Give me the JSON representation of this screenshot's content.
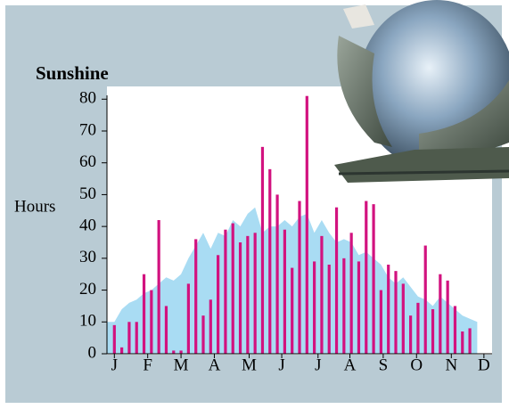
{
  "chart_data": {
    "type": "bar",
    "title": "Sunshine",
    "y_label": "Hours",
    "xlim": [
      -1,
      51
    ],
    "ylim": [
      0,
      84
    ],
    "xticks": [
      {
        "value": 0,
        "label": "J"
      },
      {
        "value": 4.5,
        "label": "F"
      },
      {
        "value": 9,
        "label": "M"
      },
      {
        "value": 13.5,
        "label": "A"
      },
      {
        "value": 18.2,
        "label": "M"
      },
      {
        "value": 22.6,
        "label": "J"
      },
      {
        "value": 27.5,
        "label": "J"
      },
      {
        "value": 31.8,
        "label": "A"
      },
      {
        "value": 36.3,
        "label": "S"
      },
      {
        "value": 40.8,
        "label": "O"
      },
      {
        "value": 45.5,
        "label": "N"
      },
      {
        "value": 49.9,
        "label": "D"
      }
    ],
    "yticks": [
      0,
      10,
      20,
      30,
      40,
      50,
      60,
      70,
      80
    ],
    "series": [
      {
        "kind": "area",
        "color": "#a9dcf3",
        "x": [
          -1,
          0,
          1,
          2,
          3,
          4,
          5,
          6,
          7,
          8,
          9,
          10,
          11,
          12,
          13,
          14,
          15,
          16,
          17,
          18,
          19,
          20,
          21,
          22,
          23,
          24,
          25,
          26,
          27,
          28,
          29,
          30,
          31,
          32,
          33,
          34,
          35,
          36,
          37,
          38,
          39,
          40,
          41,
          42,
          43,
          44,
          45,
          46,
          47,
          48,
          49
        ],
        "values": [
          10,
          10,
          14,
          16,
          17,
          19,
          20,
          22,
          24,
          23,
          25,
          30,
          34,
          38,
          33,
          38,
          37,
          42,
          40,
          44,
          46,
          38,
          40,
          40,
          42,
          40,
          43,
          44,
          38,
          42,
          38,
          35,
          36,
          35,
          31,
          32,
          30,
          28,
          24,
          22,
          24,
          21,
          18,
          17,
          15,
          18,
          16,
          14,
          12,
          11,
          10
        ]
      },
      {
        "kind": "bar",
        "color": "#d2127f",
        "x": [
          0,
          1,
          2,
          3,
          4,
          5,
          6,
          7,
          8,
          9,
          10,
          11,
          12,
          13,
          14,
          15,
          16,
          17,
          18,
          19,
          20,
          21,
          22,
          23,
          24,
          25,
          26,
          27,
          28,
          29,
          30,
          31,
          32,
          33,
          34,
          35,
          36,
          37,
          38,
          39,
          40,
          41,
          42,
          43,
          44,
          45,
          46,
          47,
          48
        ],
        "values": [
          9,
          2,
          10,
          10,
          25,
          20,
          42,
          15,
          1,
          1,
          22,
          36,
          12,
          17,
          31,
          39,
          41,
          35,
          37,
          38,
          65,
          58,
          50,
          39,
          27,
          48,
          81,
          29,
          37,
          28,
          46,
          30,
          38,
          29,
          48,
          47,
          20,
          28,
          26,
          22,
          12,
          16,
          34,
          14,
          25,
          23,
          15,
          7,
          8
        ]
      }
    ]
  }
}
